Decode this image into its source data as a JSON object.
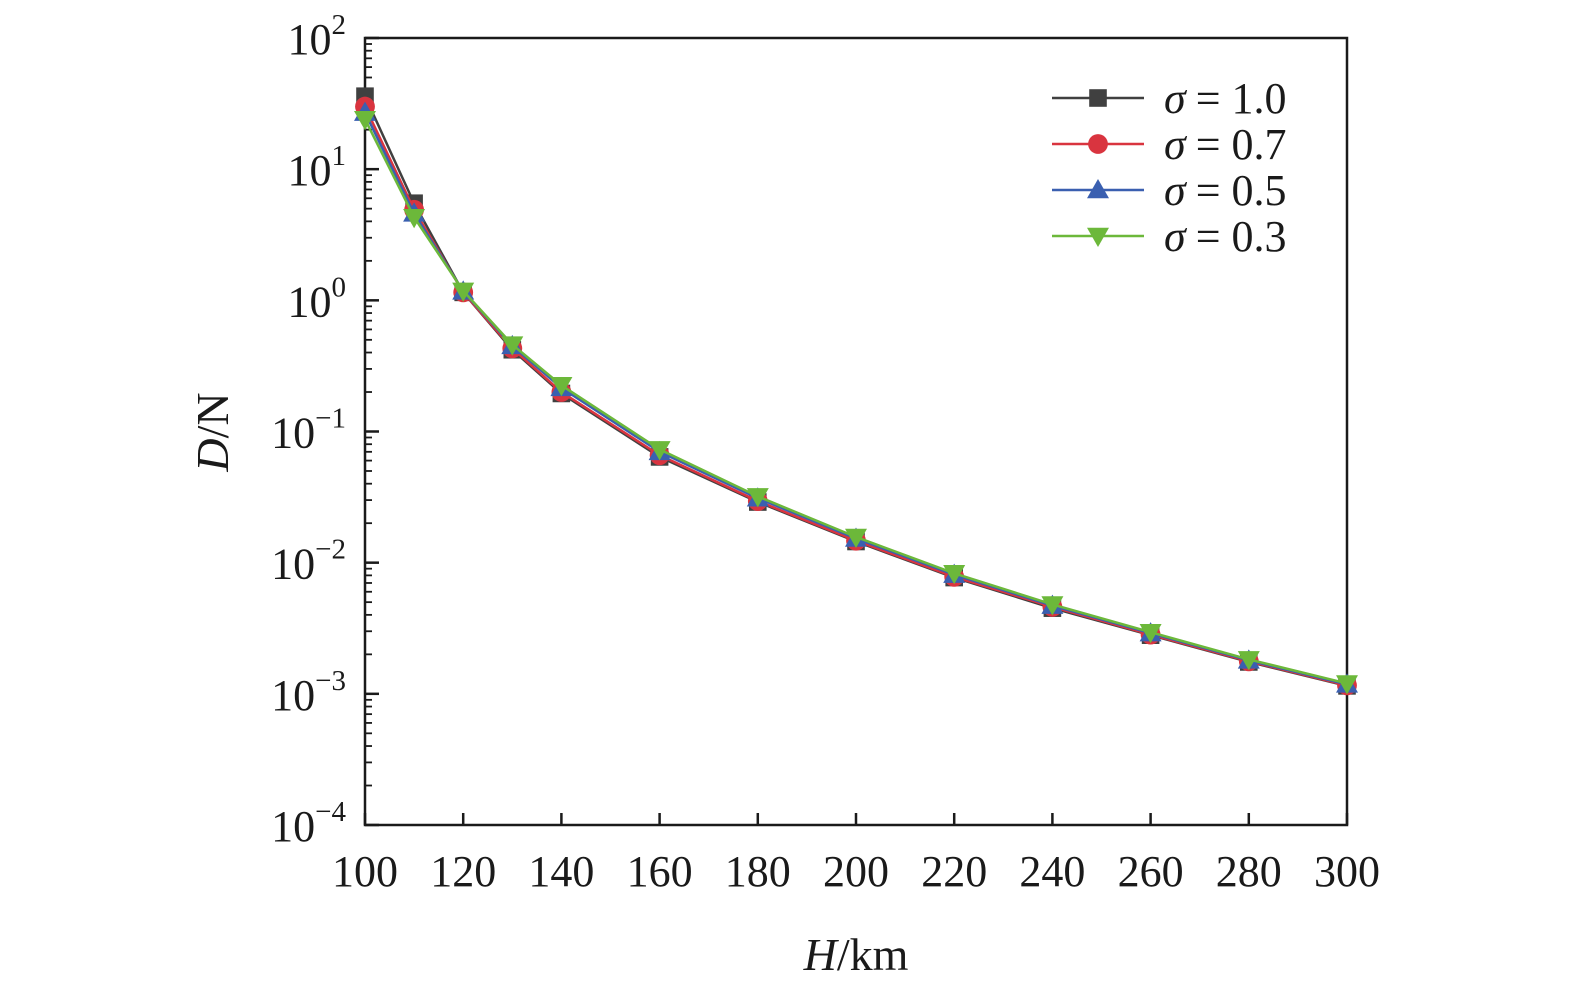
{
  "chart_data": {
    "type": "line",
    "xlabel": {
      "symbol": "H",
      "unit": "/km"
    },
    "ylabel": {
      "symbol": "D",
      "unit": "/N"
    },
    "x_scale": "linear",
    "y_scale": "log",
    "xlim": [
      100,
      300
    ],
    "ylim": [
      0.0001,
      100
    ],
    "x_ticks": [
      100,
      120,
      140,
      160,
      180,
      200,
      220,
      240,
      260,
      280,
      300
    ],
    "y_ticks": [
      {
        "base": "10",
        "exp": "2"
      },
      {
        "base": "10",
        "exp": "1"
      },
      {
        "base": "10",
        "exp": "0"
      },
      {
        "base": "10",
        "exp": "−1"
      },
      {
        "base": "10",
        "exp": "−2"
      },
      {
        "base": "10",
        "exp": "−3"
      },
      {
        "base": "10",
        "exp": "−4"
      }
    ],
    "grid": false,
    "legend_position": "top-right",
    "x": [
      100,
      110,
      120,
      130,
      140,
      160,
      180,
      200,
      220,
      240,
      260,
      280,
      300
    ],
    "series": [
      {
        "name": "σ = 1.0",
        "greek": "σ",
        "value": "= 1.0",
        "color": "#404040",
        "marker": "square",
        "values": [
          36,
          5.5,
          1.15,
          0.42,
          0.195,
          0.064,
          0.029,
          0.0145,
          0.0077,
          0.0045,
          0.0028,
          0.00175,
          0.00115
        ]
      },
      {
        "name": "σ = 0.7",
        "greek": "σ",
        "value": "= 0.7",
        "color": "#d9343f",
        "marker": "circle",
        "values": [
          30,
          4.9,
          1.15,
          0.43,
          0.2,
          0.066,
          0.0295,
          0.0147,
          0.0078,
          0.0046,
          0.00283,
          0.00177,
          0.00116
        ]
      },
      {
        "name": "σ = 0.5",
        "greek": "σ",
        "value": "= 0.5",
        "color": "#3a5fb0",
        "marker": "triangle-up",
        "values": [
          27,
          4.6,
          1.17,
          0.45,
          0.215,
          0.07,
          0.031,
          0.0153,
          0.0081,
          0.0047,
          0.0029,
          0.0018,
          0.00118
        ]
      },
      {
        "name": "σ = 0.3",
        "greek": "σ",
        "value": "= 0.3",
        "color": "#6cb83a",
        "marker": "triangle-down",
        "values": [
          24,
          4.3,
          1.18,
          0.46,
          0.225,
          0.073,
          0.032,
          0.0157,
          0.0083,
          0.0048,
          0.00295,
          0.00183,
          0.0012
        ]
      }
    ]
  }
}
